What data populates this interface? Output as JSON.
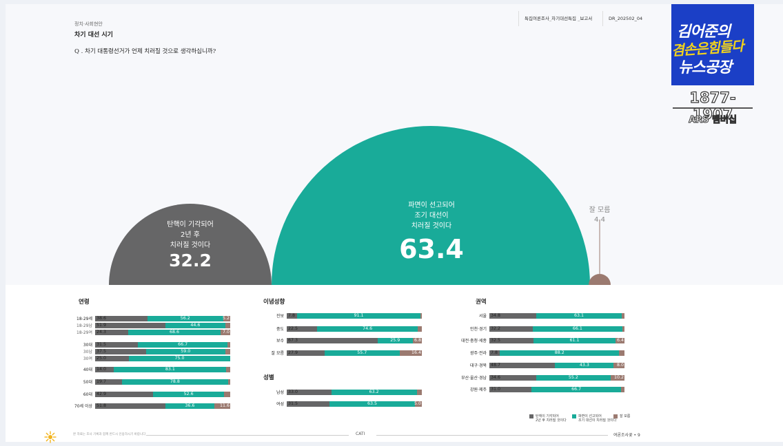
{
  "header": {
    "category": "정치·사회현안",
    "topic": "차기 대선 시기",
    "question": "Q . 차기 대통령선거가 언제 치러질 것으로 생각하십니까?",
    "report_title": "특집여론조사_차기대선특집 _보고서",
    "report_code": "DR_202502_04"
  },
  "logo": {
    "line1": "김어준의",
    "line2": "겸손은힘들다",
    "line3": "뉴스공장",
    "tally": "1877-1907",
    "ars": "ARS 멤버십"
  },
  "colors": {
    "dismissed": "#666667",
    "early": "#19ab99",
    "dontknow": "#9b7a70"
  },
  "bubbles": {
    "dismissed": {
      "label_lines": [
        "탄핵이 기각되어",
        "2년 후",
        "치러질 것이다"
      ],
      "value": "32.2"
    },
    "early": {
      "label_lines": [
        "파면이 선고되어",
        "조기 대선이",
        "치러질 것이다"
      ],
      "value": "63.4"
    },
    "dontknow": {
      "label": "잘 모름",
      "value": "4.4"
    }
  },
  "sections": {
    "age": "연령",
    "ideology": "이념성향",
    "gender": "성별",
    "region": "권역"
  },
  "legend": {
    "dismissed": [
      "탄핵이 기각되어",
      "2년 후 치러질 것이다"
    ],
    "early": [
      "파면이 선고되어",
      "조기 대선이 치러질 것이다"
    ],
    "dontknow": "잘 모름"
  },
  "footer": {
    "note": "본 자료는 조사 기록과 함께 반드시 인용하시기 바랍니다",
    "category": "CATI",
    "page": "여론조사꽃 • 9"
  },
  "chart_data": [
    {
      "type": "bar",
      "title": "차기 대선 시기",
      "categories": [
        "탄핵이 기각되어 2년 후 치러질 것이다",
        "파면이 선고되어 조기 대선이 치러질 것이다",
        "잘 모름"
      ],
      "values": [
        32.2,
        63.4,
        4.4
      ]
    },
    {
      "type": "bar",
      "title": "연령",
      "stacked": true,
      "series_names": [
        "탄핵이 기각되어 2년 후 치러질 것이다",
        "파면이 선고되어 조기 대선이 치러질 것이다",
        "잘 모름"
      ],
      "rows": [
        {
          "label": "18-29세",
          "sub": false,
          "values": [
            38.6,
            56.2,
            5.2
          ],
          "shown": [
            "38.6",
            "56.2",
            "5.2"
          ]
        },
        {
          "label": "18-29남",
          "sub": true,
          "values": [
            51.9,
            44.6,
            3.5
          ],
          "shown": [
            "51.9",
            "44.6",
            ""
          ]
        },
        {
          "label": "18-29여",
          "sub": true,
          "values": [
            24.3,
            68.6,
            7.0
          ],
          "shown": [
            "24.3",
            "68.6",
            "7.0"
          ]
        },
        {
          "label": "30대",
          "sub": false,
          "values": [
            31.5,
            66.7,
            1.8
          ],
          "shown": [
            "31.5",
            "66.7",
            ""
          ]
        },
        {
          "label": "30남",
          "sub": true,
          "values": [
            37.5,
            59.0,
            3.5
          ],
          "shown": [
            "37.5",
            "59.0",
            ""
          ]
        },
        {
          "label": "30여",
          "sub": true,
          "values": [
            25.0,
            75.0,
            0.0
          ],
          "shown": [
            "25.0",
            "75.0",
            ""
          ]
        },
        {
          "label": "40대",
          "sub": false,
          "values": [
            14.0,
            83.1,
            2.9
          ],
          "shown": [
            "14.0",
            "83.1",
            ""
          ]
        },
        {
          "label": "50대",
          "sub": false,
          "values": [
            19.7,
            78.8,
            1.5
          ],
          "shown": [
            "19.7",
            "78.8",
            ""
          ]
        },
        {
          "label": "60대",
          "sub": false,
          "values": [
            42.9,
            52.6,
            4.5
          ],
          "shown": [
            "42.9",
            "52.6",
            ""
          ]
        },
        {
          "label": "70세 이상",
          "sub": false,
          "values": [
            51.8,
            36.6,
            11.6
          ],
          "shown": [
            "51.8",
            "36.6",
            "11.6"
          ]
        }
      ]
    },
    {
      "type": "bar",
      "title": "이념성향",
      "stacked": true,
      "rows": [
        {
          "label": "진보",
          "sub": false,
          "values": [
            7.8,
            91.1,
            1.1
          ],
          "shown": [
            "7.8",
            "91.1",
            ""
          ]
        },
        {
          "label": "중도",
          "sub": false,
          "values": [
            22.5,
            74.6,
            2.9
          ],
          "shown": [
            "22.5",
            "74.6",
            ""
          ]
        },
        {
          "label": "보수",
          "sub": false,
          "values": [
            67.3,
            25.9,
            6.8
          ],
          "shown": [
            "67.3",
            "25.9",
            "6.8"
          ]
        },
        {
          "label": "잘 모름",
          "sub": false,
          "values": [
            27.9,
            55.7,
            16.4
          ],
          "shown": [
            "27.9",
            "55.7",
            "16.4"
          ]
        }
      ]
    },
    {
      "type": "bar",
      "title": "성별",
      "stacked": true,
      "rows": [
        {
          "label": "남성",
          "sub": false,
          "values": [
            33.0,
            63.2,
            3.8
          ],
          "shown": [
            "33.0",
            "63.2",
            ""
          ]
        },
        {
          "label": "여성",
          "sub": false,
          "values": [
            31.5,
            63.5,
            5.0
          ],
          "shown": [
            "31.5",
            "63.5",
            "5.0"
          ]
        }
      ]
    },
    {
      "type": "bar",
      "title": "권역",
      "stacked": true,
      "rows": [
        {
          "label": "서울",
          "sub": false,
          "values": [
            34.8,
            63.1,
            2.1
          ],
          "shown": [
            "34.8",
            "63.1",
            ""
          ]
        },
        {
          "label": "인천·경기",
          "sub": false,
          "values": [
            32.2,
            66.1,
            1.7
          ],
          "shown": [
            "32.2",
            "66.1",
            ""
          ]
        },
        {
          "label": "대전·충청·세종",
          "sub": false,
          "values": [
            32.5,
            61.1,
            6.4
          ],
          "shown": [
            "32.5",
            "61.1",
            "6.4"
          ]
        },
        {
          "label": "광주·전라",
          "sub": false,
          "values": [
            7.8,
            88.2,
            4.0
          ],
          "shown": [
            "7.8",
            "88.2",
            ""
          ]
        },
        {
          "label": "대구·경북",
          "sub": false,
          "values": [
            48.7,
            43.3,
            8.0
          ],
          "shown": [
            "48.7",
            "43.3",
            "8.0"
          ]
        },
        {
          "label": "부산·울산·경남",
          "sub": false,
          "values": [
            34.6,
            55.2,
            10.2
          ],
          "shown": [
            "34.6",
            "55.2",
            "10.2"
          ]
        },
        {
          "label": "강원·제주",
          "sub": false,
          "values": [
            31.0,
            66.7,
            2.3
          ],
          "shown": [
            "31.0",
            "66.7",
            ""
          ]
        }
      ]
    }
  ]
}
